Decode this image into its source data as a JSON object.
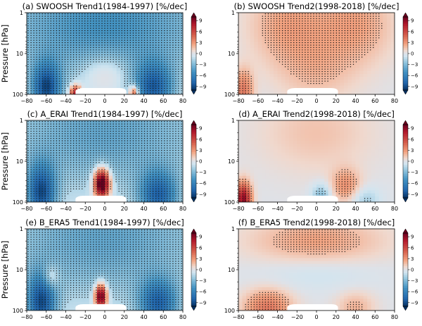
{
  "chart_data": [
    {
      "type": "heatmap",
      "title": "(a) SWOOSH Trend1(1984-1997) [%/dec]",
      "ylabel": "Pressure [hPa]",
      "xlim": [
        -80,
        80
      ],
      "ylim": [
        100,
        1
      ],
      "yscale": "log",
      "xticks": [
        "−80",
        "−60",
        "−40",
        "−20",
        "0",
        "20",
        "40",
        "60",
        "80"
      ],
      "yticks": [
        "1",
        "10",
        "100"
      ],
      "colorbar_ticks": [
        "9",
        "6",
        "3",
        "0",
        "−3",
        "−6",
        "−9"
      ],
      "colorbar_range": [
        -10,
        10
      ],
      "stippling": true,
      "blobs": [
        {
          "lat": 0,
          "p": 2,
          "v": -5,
          "slat": 120,
          "sp": 1.5
        },
        {
          "lat": -60,
          "p": 70,
          "v": -8,
          "slat": 15,
          "sp": 0.6
        },
        {
          "lat": 50,
          "p": 70,
          "v": -7,
          "slat": 20,
          "sp": 0.6
        },
        {
          "lat": 0,
          "p": 30,
          "v": 2.5,
          "slat": 25,
          "sp": 0.5
        },
        {
          "lat": -30,
          "p": 95,
          "v": 9,
          "slat": 6,
          "sp": 0.2
        },
        {
          "lat": 30,
          "p": 95,
          "v": 7,
          "slat": 5,
          "sp": 0.2
        }
      ]
    },
    {
      "type": "heatmap",
      "title": "(b) SWOOSH Trend2(1998-2018) [%/dec]",
      "ylabel": "",
      "xlim": [
        -80,
        80
      ],
      "ylim": [
        100,
        1
      ],
      "yscale": "log",
      "xticks": [
        "−80",
        "−60",
        "−40",
        "−20",
        "0",
        "20",
        "40",
        "60",
        "80"
      ],
      "yticks": [
        "1",
        "10",
        "100"
      ],
      "colorbar_ticks": [
        "9",
        "6",
        "3",
        "0",
        "−3",
        "−6",
        "−9"
      ],
      "colorbar_range": [
        -10,
        10
      ],
      "stippling": true,
      "blobs": [
        {
          "lat": -30,
          "p": 2,
          "v": 2.5,
          "slat": 40,
          "sp": 1.0
        },
        {
          "lat": 40,
          "p": 2,
          "v": 2.5,
          "slat": 40,
          "sp": 1.0
        },
        {
          "lat": -75,
          "p": 80,
          "v": 4,
          "slat": 10,
          "sp": 0.5
        },
        {
          "lat": 0,
          "p": 30,
          "v": 1.5,
          "slat": 40,
          "sp": 0.8
        }
      ]
    },
    {
      "type": "heatmap",
      "title": "(c) A_ERAI Trend1(1984-1997) [%/dec]",
      "ylabel": "Pressure [hPa]",
      "xlim": [
        -80,
        80
      ],
      "ylim": [
        100,
        1
      ],
      "yscale": "log",
      "xticks": [
        "−80",
        "−60",
        "−40",
        "−20",
        "0",
        "20",
        "40",
        "60",
        "80"
      ],
      "yticks": [
        "1",
        "10",
        "100"
      ],
      "colorbar_ticks": [
        "9",
        "6",
        "3",
        "0",
        "−3",
        "−6",
        "−9"
      ],
      "colorbar_range": [
        -10,
        10
      ],
      "stippling": true,
      "blobs": [
        {
          "lat": 0,
          "p": 2,
          "v": -4,
          "slat": 120,
          "sp": 1.5
        },
        {
          "lat": -65,
          "p": 60,
          "v": -8,
          "slat": 15,
          "sp": 0.7
        },
        {
          "lat": 55,
          "p": 70,
          "v": -7,
          "slat": 20,
          "sp": 0.6
        },
        {
          "lat": -3,
          "p": 35,
          "v": 14,
          "slat": 8,
          "sp": 0.35
        }
      ]
    },
    {
      "type": "heatmap",
      "title": "(d) A_ERAI Trend2(1998-2018) [%/dec]",
      "ylabel": "",
      "xlim": [
        -80,
        80
      ],
      "ylim": [
        100,
        1
      ],
      "yscale": "log",
      "xticks": [
        "−80",
        "−60",
        "−40",
        "−20",
        "0",
        "20",
        "40",
        "60",
        "80"
      ],
      "yticks": [
        "1",
        "10",
        "100"
      ],
      "colorbar_ticks": [
        "9",
        "6",
        "3",
        "0",
        "−3",
        "−6",
        "−9"
      ],
      "colorbar_range": [
        -10,
        10
      ],
      "stippling": true,
      "blobs": [
        {
          "lat": 0,
          "p": 2,
          "v": 1.5,
          "slat": 60,
          "sp": 1.0
        },
        {
          "lat": -75,
          "p": 85,
          "v": 9,
          "slat": 8,
          "sp": 0.4
        },
        {
          "lat": 30,
          "p": 40,
          "v": 3,
          "slat": 15,
          "sp": 0.4
        },
        {
          "lat": 5,
          "p": 70,
          "v": -3,
          "slat": 10,
          "sp": 0.3
        },
        {
          "lat": 50,
          "p": 85,
          "v": -2,
          "slat": 15,
          "sp": 0.3
        }
      ]
    },
    {
      "type": "heatmap",
      "title": "(e) B_ERA5 Trend1(1984-1997) [%/dec]",
      "ylabel": "Pressure [hPa]",
      "xlim": [
        -80,
        80
      ],
      "ylim": [
        100,
        1
      ],
      "yscale": "log",
      "xticks": [
        "−80",
        "−60",
        "−40",
        "−20",
        "0",
        "20",
        "40",
        "60",
        "80"
      ],
      "yticks": [
        "1",
        "10",
        "100"
      ],
      "colorbar_ticks": [
        "9",
        "6",
        "3",
        "0",
        "−3",
        "−6",
        "−9"
      ],
      "colorbar_range": [
        -10,
        10
      ],
      "stippling": true,
      "blobs": [
        {
          "lat": 0,
          "p": 2,
          "v": -4,
          "slat": 120,
          "sp": 1.5
        },
        {
          "lat": -65,
          "p": 65,
          "v": -8,
          "slat": 15,
          "sp": 0.7
        },
        {
          "lat": 55,
          "p": 70,
          "v": -7,
          "slat": 20,
          "sp": 0.6
        },
        {
          "lat": -4,
          "p": 45,
          "v": 12,
          "slat": 6,
          "sp": 0.3
        },
        {
          "lat": -55,
          "p": 15,
          "v": 3,
          "slat": 8,
          "sp": 0.3
        }
      ]
    },
    {
      "type": "heatmap",
      "title": "(f) B_ERA5 Trend2(1998-2018) [%/dec]",
      "ylabel": "",
      "xlim": [
        -80,
        80
      ],
      "ylim": [
        100,
        1
      ],
      "yscale": "log",
      "xticks": [
        "−80",
        "−60",
        "−40",
        "−20",
        "0",
        "20",
        "40",
        "60",
        "80"
      ],
      "yticks": [
        "1",
        "10",
        "100"
      ],
      "colorbar_ticks": [
        "9",
        "6",
        "3",
        "0",
        "−3",
        "−6",
        "−9"
      ],
      "colorbar_range": [
        -10,
        10
      ],
      "stippling": true,
      "blobs": [
        {
          "lat": 0,
          "p": 2,
          "v": 2.5,
          "slat": 70,
          "sp": 0.6
        },
        {
          "lat": -50,
          "p": 85,
          "v": 4,
          "slat": 25,
          "sp": 0.45
        },
        {
          "lat": 40,
          "p": 85,
          "v": 2,
          "slat": 20,
          "sp": 0.4
        },
        {
          "lat": 0,
          "p": 12,
          "v": -1,
          "slat": 60,
          "sp": 0.4
        }
      ]
    }
  ]
}
